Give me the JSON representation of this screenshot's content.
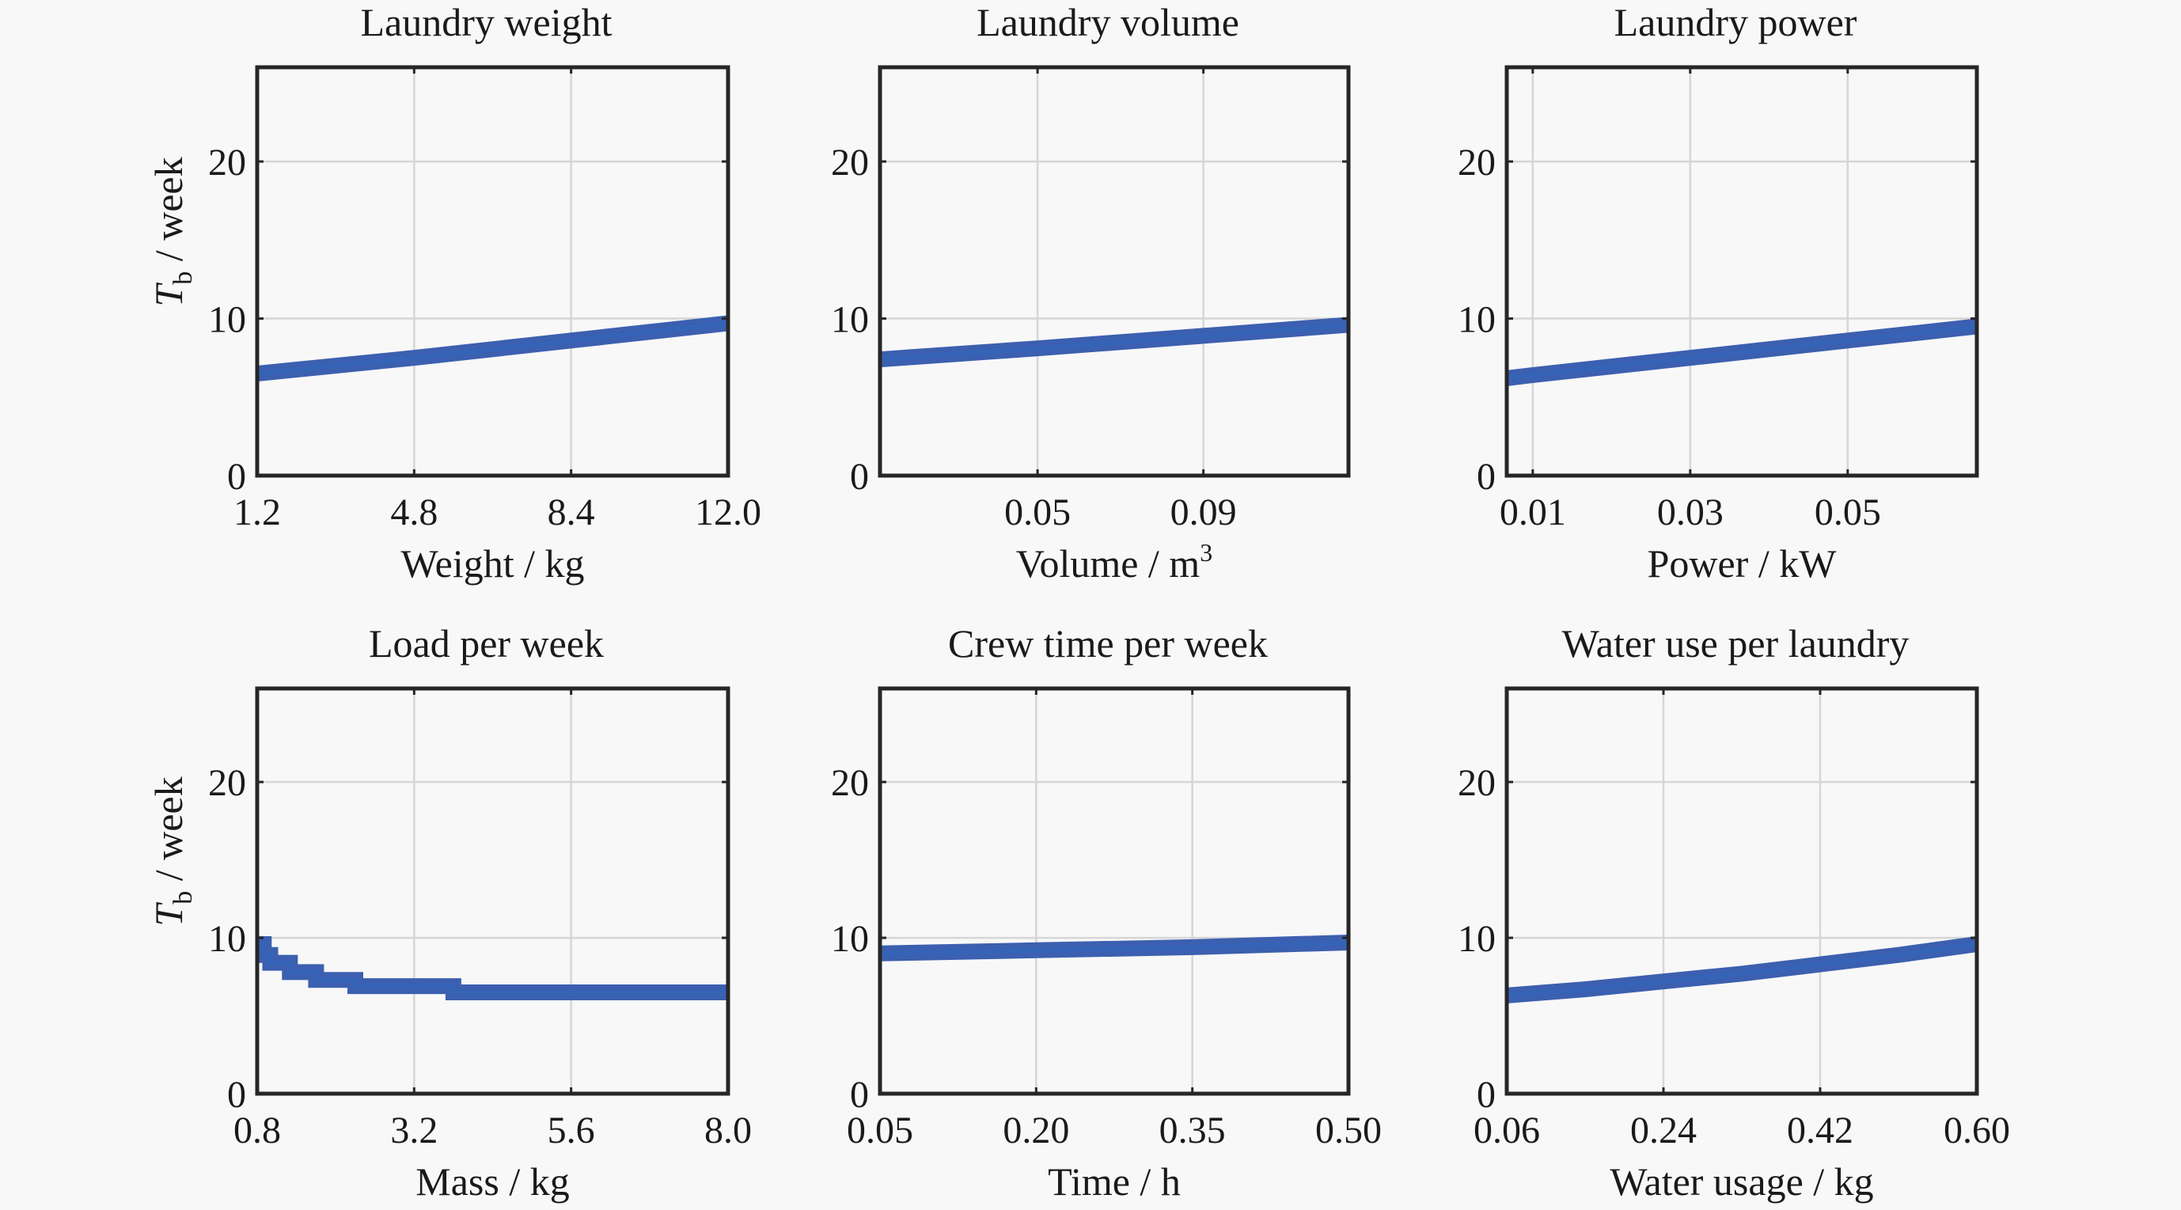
{
  "chart_data": [
    {
      "type": "line",
      "title": "Laundry weight",
      "xlabel": "Weight / kg",
      "xlabel_sup": "",
      "ylabel": "T",
      "ylabel_sub": "b",
      "ylabel_rest": " / week",
      "xlim": [
        1.2,
        12.0
      ],
      "ylim": [
        0,
        26
      ],
      "xticks": [
        1.2,
        4.8,
        8.4,
        12.0
      ],
      "xtick_labels": [
        "1.2",
        "4.8",
        "8.4",
        "12.0"
      ],
      "yticks": [
        0,
        10,
        20
      ],
      "ytick_labels": [
        "0",
        "10",
        "20"
      ],
      "grid": true,
      "series": [
        {
          "name": "Tb",
          "x": [
            1.2,
            4.8,
            8.4,
            12.0
          ],
          "y": [
            6.5,
            7.5,
            8.6,
            9.7
          ]
        }
      ]
    },
    {
      "type": "line",
      "title": "Laundry volume",
      "xlabel": "Volume / m",
      "xlabel_sup": "3",
      "ylabel": "",
      "ylabel_sub": "",
      "ylabel_rest": "",
      "xlim": [
        0.012,
        0.125
      ],
      "ylim": [
        0,
        26
      ],
      "xticks": [
        0.05,
        0.09
      ],
      "xtick_labels": [
        "0.05",
        "0.09"
      ],
      "yticks": [
        0,
        10,
        20
      ],
      "ytick_labels": [
        "0",
        "10",
        "20"
      ],
      "grid": true,
      "series": [
        {
          "name": "Tb",
          "x": [
            0.012,
            0.05,
            0.09,
            0.125
          ],
          "y": [
            7.4,
            8.1,
            8.9,
            9.6
          ]
        }
      ]
    },
    {
      "type": "line",
      "title": "Laundry power",
      "xlabel": "Power / kW",
      "xlabel_sup": "",
      "ylabel": "",
      "ylabel_sub": "",
      "ylabel_rest": "",
      "xlim": [
        0.0067,
        0.0664
      ],
      "ylim": [
        0,
        26
      ],
      "xticks": [
        0.01,
        0.03,
        0.05
      ],
      "xtick_labels": [
        "0.01",
        "0.03",
        "0.05"
      ],
      "yticks": [
        0,
        10,
        20
      ],
      "ytick_labels": [
        "0",
        "10",
        "20"
      ],
      "grid": true,
      "series": [
        {
          "name": "Tb",
          "x": [
            0.0067,
            0.01,
            0.03,
            0.05,
            0.0664
          ],
          "y": [
            6.2,
            6.4,
            7.5,
            8.6,
            9.5
          ]
        }
      ]
    },
    {
      "type": "line",
      "title": "Load per week",
      "xlabel": "Mass / kg",
      "xlabel_sup": "",
      "ylabel": "T",
      "ylabel_sub": "b",
      "ylabel_rest": " / week",
      "xlim": [
        0.8,
        8.0
      ],
      "ylim": [
        0,
        26
      ],
      "xticks": [
        0.8,
        3.2,
        5.6,
        8.0
      ],
      "xtick_labels": [
        "0.8",
        "3.2",
        "5.6",
        "8.0"
      ],
      "yticks": [
        0,
        10,
        20
      ],
      "ytick_labels": [
        "0",
        "10",
        "20"
      ],
      "grid": true,
      "step": true,
      "series": [
        {
          "name": "Tb",
          "x": [
            0.8,
            0.9,
            1.0,
            1.3,
            1.7,
            2.3,
            3.8,
            8.0
          ],
          "y": [
            9.6,
            8.9,
            8.4,
            7.8,
            7.3,
            6.9,
            6.5,
            6.5
          ]
        }
      ]
    },
    {
      "type": "line",
      "title": "Crew time per week",
      "xlabel": "Time / h",
      "xlabel_sup": "",
      "ylabel": "",
      "ylabel_sub": "",
      "ylabel_rest": "",
      "xlim": [
        0.05,
        0.5
      ],
      "ylim": [
        0,
        26
      ],
      "xticks": [
        0.05,
        0.2,
        0.35,
        0.5
      ],
      "xtick_labels": [
        "0.05",
        "0.20",
        "0.35",
        "0.50"
      ],
      "yticks": [
        0,
        10,
        20
      ],
      "ytick_labels": [
        "0",
        "10",
        "20"
      ],
      "grid": true,
      "series": [
        {
          "name": "Tb",
          "x": [
            0.05,
            0.2,
            0.35,
            0.5
          ],
          "y": [
            9.0,
            9.2,
            9.4,
            9.7
          ]
        }
      ]
    },
    {
      "type": "line",
      "title": "Water use per laundry",
      "xlabel": "Water usage / kg",
      "xlabel_sup": "",
      "ylabel": "",
      "ylabel_sub": "",
      "ylabel_rest": "",
      "xlim": [
        0.06,
        0.6
      ],
      "ylim": [
        0,
        26
      ],
      "xticks": [
        0.06,
        0.24,
        0.42,
        0.6
      ],
      "xtick_labels": [
        "0.06",
        "0.24",
        "0.42",
        "0.60"
      ],
      "yticks": [
        0,
        10,
        20
      ],
      "ytick_labels": [
        "0",
        "10",
        "20"
      ],
      "grid": true,
      "series": [
        {
          "name": "Tb",
          "x": [
            0.06,
            0.15,
            0.24,
            0.33,
            0.42,
            0.51,
            0.6
          ],
          "y": [
            6.3,
            6.7,
            7.2,
            7.7,
            8.3,
            8.9,
            9.6
          ]
        }
      ]
    }
  ],
  "colors": {
    "line": "#3c5fb0",
    "background": "#f8f8f8",
    "frame": "#262626",
    "grid": "#d6d6d6"
  }
}
